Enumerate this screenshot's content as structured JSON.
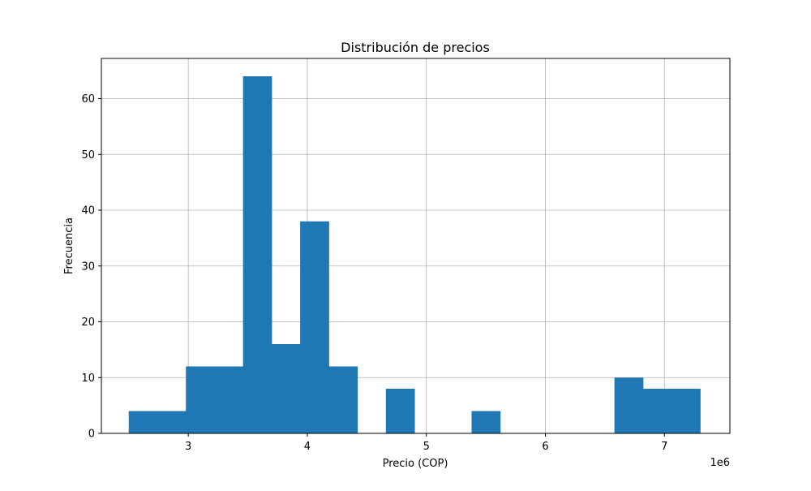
{
  "chart_data": {
    "type": "bar",
    "title": "Distribución de precios",
    "xlabel": "Precio (COP)",
    "ylabel": "Frecuencia",
    "x_offset_label": "1e6",
    "xlim": [
      2.27,
      7.55
    ],
    "ylim": [
      0,
      67.2
    ],
    "x_ticks": [
      3,
      4,
      5,
      6,
      7
    ],
    "x_tick_labels": [
      "3",
      "4",
      "5",
      "6",
      "7"
    ],
    "y_ticks": [
      0,
      10,
      20,
      30,
      40,
      50,
      60
    ],
    "y_tick_labels": [
      "0",
      "10",
      "20",
      "30",
      "40",
      "50",
      "60"
    ],
    "grid": true,
    "bar_color": "#1f77b4",
    "bins": [
      {
        "x0": 2.5,
        "x1": 2.74,
        "count": 4
      },
      {
        "x0": 2.74,
        "x1": 2.98,
        "count": 4
      },
      {
        "x0": 2.98,
        "x1": 3.22,
        "count": 12
      },
      {
        "x0": 3.22,
        "x1": 3.46,
        "count": 12
      },
      {
        "x0": 3.46,
        "x1": 3.7,
        "count": 64
      },
      {
        "x0": 3.7,
        "x1": 3.94,
        "count": 16
      },
      {
        "x0": 3.94,
        "x1": 4.18,
        "count": 38
      },
      {
        "x0": 4.18,
        "x1": 4.42,
        "count": 12
      },
      {
        "x0": 4.42,
        "x1": 4.66,
        "count": 0
      },
      {
        "x0": 4.66,
        "x1": 4.9,
        "count": 8
      },
      {
        "x0": 4.9,
        "x1": 5.14,
        "count": 0
      },
      {
        "x0": 5.14,
        "x1": 5.38,
        "count": 0
      },
      {
        "x0": 5.38,
        "x1": 5.62,
        "count": 4
      },
      {
        "x0": 5.62,
        "x1": 5.86,
        "count": 0
      },
      {
        "x0": 5.86,
        "x1": 6.1,
        "count": 0
      },
      {
        "x0": 6.1,
        "x1": 6.34,
        "count": 0
      },
      {
        "x0": 6.34,
        "x1": 6.58,
        "count": 0
      },
      {
        "x0": 6.58,
        "x1": 6.82,
        "count": 10
      },
      {
        "x0": 6.82,
        "x1": 7.06,
        "count": 8
      },
      {
        "x0": 7.06,
        "x1": 7.3,
        "count": 8
      }
    ]
  }
}
